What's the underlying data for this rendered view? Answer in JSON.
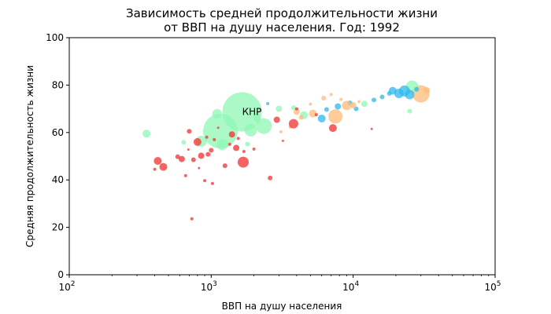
{
  "chart_data": {
    "type": "scatter",
    "title": "Зависимость средней продолжительности жизни",
    "subtitle": "от ВВП на душу населения. Год: 1992",
    "xlabel": "ВВП на душу населения",
    "ylabel": "Средняя продолжительность жизни",
    "xscale": "log",
    "xlim": [
      100,
      100000
    ],
    "ylim": [
      0,
      100
    ],
    "x_ticks": [
      {
        "value": 100,
        "base": "10",
        "exp": "2"
      },
      {
        "value": 1000,
        "base": "10",
        "exp": "3"
      },
      {
        "value": 10000,
        "base": "10",
        "exp": "4"
      },
      {
        "value": 100000,
        "base": "10",
        "exp": "5"
      }
    ],
    "y_ticks": [
      "0",
      "20",
      "40",
      "60",
      "80",
      "100"
    ],
    "grid": false,
    "colors": {
      "africa": "#f23030",
      "asia": "#8ef7b4",
      "europe": "#2eb8ee",
      "americas": "#fcbb77"
    },
    "annotations": [
      {
        "text": "КНР",
        "x": 1650,
        "y": 68.7
      }
    ],
    "points": [
      {
        "x": 1650,
        "y": 68.7,
        "s": 25,
        "c": "asia"
      },
      {
        "x": 1160,
        "y": 60.6,
        "s": 22,
        "c": "asia"
      },
      {
        "x": 30000,
        "y": 76.3,
        "s": 11,
        "c": "americas"
      },
      {
        "x": 26000,
        "y": 79.3,
        "s": 8,
        "c": "asia"
      },
      {
        "x": 2350,
        "y": 62.7,
        "s": 10,
        "c": "asia"
      },
      {
        "x": 1900,
        "y": 61.0,
        "s": 8,
        "c": "asia"
      },
      {
        "x": 7500,
        "y": 66.8,
        "s": 9,
        "c": "americas"
      },
      {
        "x": 1200,
        "y": 54.9,
        "s": 7,
        "c": "asia"
      },
      {
        "x": 350,
        "y": 59.5,
        "s": 5,
        "c": "asia"
      },
      {
        "x": 1100,
        "y": 67.9,
        "s": 6,
        "c": "asia"
      },
      {
        "x": 850,
        "y": 56.3,
        "s": 7,
        "c": "asia"
      },
      {
        "x": 2100,
        "y": 66.2,
        "s": 5,
        "c": "asia"
      },
      {
        "x": 4500,
        "y": 67.3,
        "s": 5,
        "c": "asia"
      },
      {
        "x": 3000,
        "y": 70.0,
        "s": 4,
        "c": "asia"
      },
      {
        "x": 12000,
        "y": 72.1,
        "s": 4,
        "c": "asia"
      },
      {
        "x": 25000,
        "y": 69.0,
        "s": 3,
        "c": "asia"
      },
      {
        "x": 3800,
        "y": 70.5,
        "s": 3,
        "c": "asia"
      },
      {
        "x": 640,
        "y": 55.9,
        "s": 3,
        "c": "asia"
      },
      {
        "x": 1800,
        "y": 55.1,
        "s": 3,
        "c": "asia"
      },
      {
        "x": 23000,
        "y": 77.5,
        "s": 7,
        "c": "europe"
      },
      {
        "x": 25000,
        "y": 76.0,
        "s": 6,
        "c": "europe"
      },
      {
        "x": 19000,
        "y": 77.6,
        "s": 5,
        "c": "europe"
      },
      {
        "x": 21000,
        "y": 76.5,
        "s": 6,
        "c": "europe"
      },
      {
        "x": 6000,
        "y": 65.9,
        "s": 5,
        "c": "europe"
      },
      {
        "x": 7800,
        "y": 71.0,
        "s": 4,
        "c": "europe"
      },
      {
        "x": 9500,
        "y": 72.5,
        "s": 3,
        "c": "europe"
      },
      {
        "x": 14000,
        "y": 73.7,
        "s": 3,
        "c": "europe"
      },
      {
        "x": 16000,
        "y": 75.0,
        "s": 3,
        "c": "europe"
      },
      {
        "x": 10500,
        "y": 70.0,
        "s": 3,
        "c": "europe"
      },
      {
        "x": 6500,
        "y": 69.7,
        "s": 3,
        "c": "europe"
      },
      {
        "x": 2500,
        "y": 72.2,
        "s": 2,
        "c": "europe"
      },
      {
        "x": 28000,
        "y": 78.2,
        "s": 3,
        "c": "europe"
      },
      {
        "x": 18000,
        "y": 76.5,
        "s": 3,
        "c": "europe"
      },
      {
        "x": 9000,
        "y": 71.4,
        "s": 6,
        "c": "americas"
      },
      {
        "x": 5200,
        "y": 68.0,
        "s": 5,
        "c": "americas"
      },
      {
        "x": 4000,
        "y": 68.7,
        "s": 4,
        "c": "americas"
      },
      {
        "x": 10000,
        "y": 71.5,
        "s": 4,
        "c": "americas"
      },
      {
        "x": 6200,
        "y": 74.5,
        "s": 3,
        "c": "americas"
      },
      {
        "x": 4300,
        "y": 66.4,
        "s": 3,
        "c": "americas"
      },
      {
        "x": 3100,
        "y": 60.3,
        "s": 2,
        "c": "americas"
      },
      {
        "x": 3600,
        "y": 62.3,
        "s": 2,
        "c": "americas"
      },
      {
        "x": 8200,
        "y": 74.0,
        "s": 2,
        "c": "americas"
      },
      {
        "x": 7000,
        "y": 76.0,
        "s": 2,
        "c": "americas"
      },
      {
        "x": 5000,
        "y": 72.0,
        "s": 2,
        "c": "americas"
      },
      {
        "x": 33000,
        "y": 77.8,
        "s": 4,
        "c": "americas"
      },
      {
        "x": 11000,
        "y": 73.0,
        "s": 2,
        "c": "americas"
      },
      {
        "x": 1680,
        "y": 47.5,
        "s": 7,
        "c": "africa"
      },
      {
        "x": 3800,
        "y": 63.7,
        "s": 6,
        "c": "africa"
      },
      {
        "x": 420,
        "y": 48.0,
        "s": 5,
        "c": "africa"
      },
      {
        "x": 460,
        "y": 45.5,
        "s": 5,
        "c": "africa"
      },
      {
        "x": 7200,
        "y": 61.9,
        "s": 5,
        "c": "africa"
      },
      {
        "x": 800,
        "y": 56.0,
        "s": 5,
        "c": "africa"
      },
      {
        "x": 1400,
        "y": 59.2,
        "s": 4,
        "c": "africa"
      },
      {
        "x": 1500,
        "y": 53.5,
        "s": 4,
        "c": "africa"
      },
      {
        "x": 2900,
        "y": 65.4,
        "s": 4,
        "c": "africa"
      },
      {
        "x": 620,
        "y": 48.8,
        "s": 4,
        "c": "africa"
      },
      {
        "x": 850,
        "y": 50.2,
        "s": 4,
        "c": "africa"
      },
      {
        "x": 1000,
        "y": 52.5,
        "s": 3,
        "c": "africa"
      },
      {
        "x": 1250,
        "y": 46.0,
        "s": 3,
        "c": "africa"
      },
      {
        "x": 700,
        "y": 60.5,
        "s": 3,
        "c": "africa"
      },
      {
        "x": 950,
        "y": 50.8,
        "s": 3,
        "c": "africa"
      },
      {
        "x": 750,
        "y": 48.5,
        "s": 3,
        "c": "africa"
      },
      {
        "x": 580,
        "y": 49.8,
        "s": 3,
        "c": "africa"
      },
      {
        "x": 2600,
        "y": 40.8,
        "s": 3,
        "c": "africa"
      },
      {
        "x": 1020,
        "y": 38.5,
        "s": 2,
        "c": "africa"
      },
      {
        "x": 900,
        "y": 39.7,
        "s": 2,
        "c": "africa"
      },
      {
        "x": 730,
        "y": 23.6,
        "s": 2,
        "c": "africa"
      },
      {
        "x": 1700,
        "y": 52.0,
        "s": 2,
        "c": "africa"
      },
      {
        "x": 1050,
        "y": 57.0,
        "s": 2,
        "c": "africa"
      },
      {
        "x": 4000,
        "y": 70.0,
        "s": 2,
        "c": "africa"
      },
      {
        "x": 5500,
        "y": 67.5,
        "s": 2,
        "c": "africa"
      },
      {
        "x": 2000,
        "y": 53.0,
        "s": 2,
        "c": "africa"
      },
      {
        "x": 400,
        "y": 44.5,
        "s": 2,
        "c": "africa"
      },
      {
        "x": 660,
        "y": 41.8,
        "s": 2,
        "c": "africa"
      },
      {
        "x": 930,
        "y": 58.0,
        "s": 2,
        "c": "africa"
      },
      {
        "x": 1350,
        "y": 55.0,
        "s": 2,
        "c": "africa"
      },
      {
        "x": 1550,
        "y": 57.5,
        "s": 2,
        "c": "africa"
      },
      {
        "x": 3200,
        "y": 56.5,
        "s": 1.5,
        "c": "africa"
      },
      {
        "x": 13500,
        "y": 61.5,
        "s": 1.5,
        "c": "africa"
      },
      {
        "x": 690,
        "y": 52.8,
        "s": 1.5,
        "c": "africa"
      },
      {
        "x": 820,
        "y": 45.0,
        "s": 1.5,
        "c": "africa"
      },
      {
        "x": 1120,
        "y": 62.0,
        "s": 1.5,
        "c": "africa"
      }
    ]
  }
}
